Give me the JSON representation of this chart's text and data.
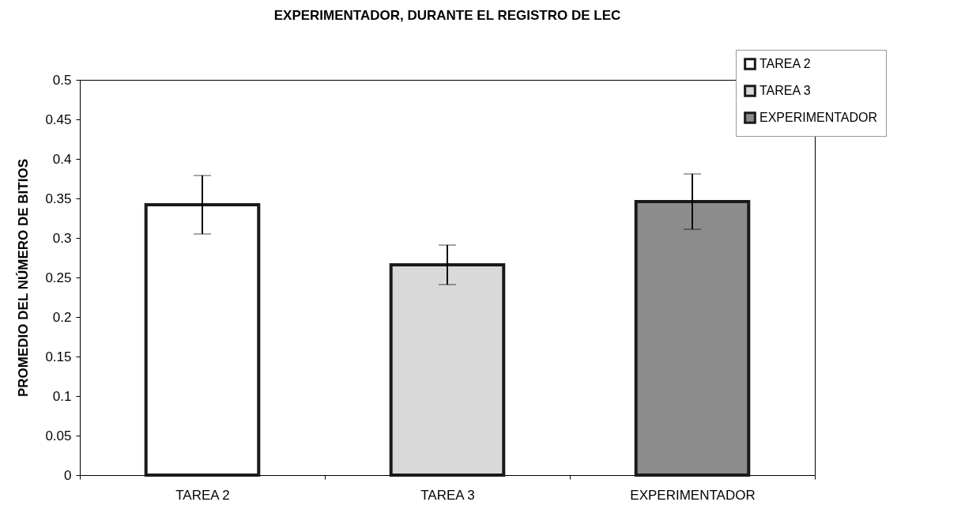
{
  "chart_data": {
    "type": "bar",
    "title": "EXPERIMENTADOR, DURANTE EL REGISTRO DE LEC",
    "ylabel": "PROMEDIO DEL NÚMERO DE BITIOS",
    "categories": [
      "TAREA 2",
      "TAREA 3",
      "EXPERIMENTADOR"
    ],
    "series": [
      {
        "name": "TAREA 2",
        "color": "#ffffff",
        "values": [
          0.342,
          null,
          null
        ],
        "errors": [
          0.037,
          null,
          null
        ]
      },
      {
        "name": "TAREA 3",
        "color": "#d9d9d9",
        "values": [
          null,
          0.266,
          null
        ],
        "errors": [
          null,
          0.025,
          null
        ]
      },
      {
        "name": "EXPERIMENTADOR",
        "color": "#8c8c8c",
        "values": [
          null,
          null,
          0.346
        ],
        "errors": [
          null,
          null,
          0.035
        ]
      }
    ],
    "ylim": [
      0,
      0.5
    ],
    "yticks": [
      0,
      0.05,
      0.1,
      0.15,
      0.2,
      0.25,
      0.3,
      0.35,
      0.4,
      0.45,
      0.5
    ],
    "grid": false,
    "legend": "top right"
  }
}
